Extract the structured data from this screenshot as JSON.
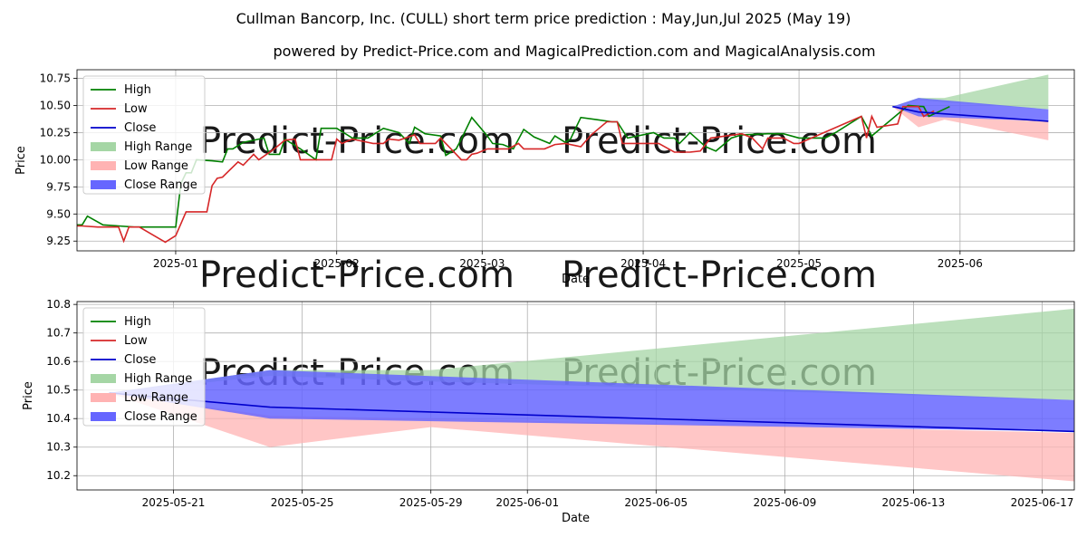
{
  "title": "Cullman Bancorp, Inc. (CULL) short term price prediction : May,Jun,Jul 2025 (May 19)",
  "subtitle": "powered by Predict-Price.com and MagicalPrediction.com and MagicalAnalysis.com",
  "watermark": "Predict-Price.com",
  "colors": {
    "high": "#008000",
    "low": "#d62728",
    "close": "#0000cc",
    "high_range": "#a5d6a5",
    "low_range": "#ffb3b3",
    "close_range": "#6666ff"
  },
  "chart_data": [
    {
      "type": "line",
      "xlabel": "Date",
      "ylabel": "Price",
      "x_axis": "date",
      "xlim": [
        "2024-12-13",
        "2025-06-23"
      ],
      "ylim": [
        9.16,
        10.83
      ],
      "x_ticks": [
        "2025-01-01",
        "2025-02-01",
        "2025-03-01",
        "2025-04-01",
        "2025-05-01",
        "2025-06-01"
      ],
      "x_tick_labels": [
        "2025-01",
        "2025-02",
        "2025-03",
        "2025-04",
        "2025-05",
        "2025-06"
      ],
      "y_ticks": [
        9.25,
        9.5,
        9.75,
        10.0,
        10.25,
        10.5,
        10.75
      ],
      "y_tick_labels": [
        "9.25",
        "9.50",
        "9.75",
        "10.00",
        "10.25",
        "10.50",
        "10.75"
      ],
      "grid": true,
      "legend_position": "top-left",
      "legend": [
        "High",
        "Low",
        "Close",
        "High Range",
        "Low Range",
        "Close Range"
      ],
      "series": [
        {
          "name": "High",
          "key": "high",
          "points": [
            [
              "2024-12-20",
              9.39
            ],
            [
              "2024-12-21",
              9.58
            ],
            [
              "2024-12-24",
              9.49
            ],
            [
              "2024-12-27",
              9.5
            ],
            [
              "2024-12-30",
              9.52
            ],
            [
              "2025-01-01",
              9.51
            ],
            [
              "2025-01-03",
              9.46
            ],
            [
              "2025-01-06",
              9.44
            ],
            [
              "2025-01-08",
              9.4
            ],
            [
              "2025-01-10",
              9.4
            ],
            [
              "2025-01-11",
              9.48
            ],
            [
              "2025-01-14",
              9.4
            ],
            [
              "2025-01-17",
              9.39
            ],
            [
              "2025-01-20",
              9.38
            ],
            [
              "2025-01-28",
              9.38
            ],
            [
              "2025-01-29",
              9.78
            ],
            [
              "2025-01-30",
              9.88
            ],
            [
              "2025-01-31",
              9.88
            ],
            [
              "2025-02-01",
              10.0
            ],
            [
              "2025-02-04",
              9.99
            ],
            [
              "2025-02-06",
              9.98
            ],
            [
              "2025-02-07",
              10.1
            ],
            [
              "2025-02-08",
              10.1
            ],
            [
              "2025-02-10",
              10.16
            ],
            [
              "2025-02-13",
              10.19
            ],
            [
              "2025-02-14",
              10.2
            ],
            [
              "2025-02-15",
              10.05
            ],
            [
              "2025-02-17",
              10.05
            ],
            [
              "2025-02-18",
              10.19
            ],
            [
              "2025-02-21",
              10.1
            ],
            [
              "2025-02-24",
              10.0
            ],
            [
              "2025-02-25",
              10.29
            ],
            [
              "2025-02-28",
              10.29
            ],
            [
              "2025-03-03",
              10.2
            ],
            [
              "2025-03-06",
              10.2
            ],
            [
              "2025-03-09",
              10.29
            ],
            [
              "2025-03-12",
              10.25
            ],
            [
              "2025-03-14",
              10.15
            ],
            [
              "2025-03-15",
              10.3
            ],
            [
              "2025-03-17",
              10.24
            ],
            [
              "2025-03-20",
              10.22
            ],
            [
              "2025-03-21",
              10.04
            ],
            [
              "2025-03-23",
              10.1
            ],
            [
              "2025-03-24",
              10.19
            ],
            [
              "2025-03-26",
              10.39
            ],
            [
              "2025-03-29",
              10.22
            ],
            [
              "2025-03-30",
              10.15
            ],
            [
              "2025-04-01",
              10.14
            ],
            [
              "2025-04-03",
              10.1
            ],
            [
              "2025-04-05",
              10.28
            ],
            [
              "2025-04-07",
              10.21
            ],
            [
              "2025-04-10",
              10.15
            ],
            [
              "2025-04-11",
              10.22
            ],
            [
              "2025-04-13",
              10.16
            ],
            [
              "2025-04-14",
              10.19
            ],
            [
              "2025-04-16",
              10.39
            ],
            [
              "2025-04-19",
              10.37
            ],
            [
              "2025-04-22",
              10.35
            ],
            [
              "2025-04-23",
              10.35
            ],
            [
              "2025-04-25",
              10.2
            ],
            [
              "2025-04-30",
              10.25
            ],
            [
              "2025-05-02",
              10.2
            ],
            [
              "2025-05-04",
              10.2
            ],
            [
              "2025-05-05",
              10.15
            ],
            [
              "2025-05-07",
              10.25
            ],
            [
              "2025-05-10",
              10.12
            ],
            [
              "2025-05-12",
              10.08
            ],
            [
              "2025-05-15",
              10.2
            ],
            [
              "2025-05-17",
              10.23
            ],
            [
              "2025-05-22",
              10.24
            ],
            [
              "2025-05-25",
              10.24
            ],
            [
              "2025-05-28",
              10.2
            ],
            [
              "2025-05-31",
              10.2
            ],
            [
              "2025-06-02",
              10.2
            ],
            [
              "2025-06-04",
              10.25
            ],
            [
              "2025-06-09",
              10.4
            ],
            [
              "2025-06-11",
              10.22
            ],
            [
              "2025-06-13",
              10.3
            ],
            [
              "2025-06-18",
              10.5
            ],
            [
              "2025-06-21",
              10.49
            ],
            [
              "2025-06-22",
              10.4
            ],
            [
              "2025-06-26",
              10.49
            ]
          ]
        },
        {
          "name": "Low",
          "key": "low",
          "points": [
            [
              "2024-12-20",
              9.39
            ],
            [
              "2024-12-21",
              9.39
            ],
            [
              "2024-12-24",
              9.45
            ],
            [
              "2024-12-25",
              9.48
            ],
            [
              "2024-12-27",
              9.5
            ],
            [
              "2024-12-30",
              9.52
            ],
            [
              "2024-12-31",
              9.46
            ],
            [
              "2025-01-03",
              9.46
            ],
            [
              "2025-01-06",
              9.42
            ],
            [
              "2025-01-08",
              9.39
            ],
            [
              "2025-01-10",
              9.39
            ],
            [
              "2025-01-13",
              9.38
            ],
            [
              "2025-01-17",
              9.38
            ],
            [
              "2025-01-18",
              9.25
            ],
            [
              "2025-01-19",
              9.38
            ],
            [
              "2025-01-21",
              9.38
            ],
            [
              "2025-01-26",
              9.24
            ],
            [
              "2025-01-28",
              9.3
            ],
            [
              "2025-01-30",
              9.52
            ],
            [
              "2025-02-03",
              9.52
            ],
            [
              "2025-02-04",
              9.76
            ],
            [
              "2025-02-05",
              9.83
            ],
            [
              "2025-02-06",
              9.84
            ],
            [
              "2025-02-09",
              9.98
            ],
            [
              "2025-02-10",
              9.95
            ],
            [
              "2025-02-12",
              10.05
            ],
            [
              "2025-02-13",
              10.0
            ],
            [
              "2025-02-16",
              10.1
            ],
            [
              "2025-02-18",
              10.18
            ],
            [
              "2025-02-20",
              10.19
            ],
            [
              "2025-02-21",
              10.0
            ],
            [
              "2025-02-27",
              10.0
            ],
            [
              "2025-02-28",
              10.19
            ],
            [
              "2025-03-01",
              10.15
            ],
            [
              "2025-03-03",
              10.19
            ],
            [
              "2025-03-05",
              10.17
            ],
            [
              "2025-03-07",
              10.15
            ],
            [
              "2025-03-09",
              10.15
            ],
            [
              "2025-03-10",
              10.19
            ],
            [
              "2025-03-12",
              10.18
            ],
            [
              "2025-03-15",
              10.23
            ],
            [
              "2025-03-16",
              10.15
            ],
            [
              "2025-03-19",
              10.15
            ],
            [
              "2025-03-20",
              10.2
            ],
            [
              "2025-03-22",
              10.1
            ],
            [
              "2025-03-24",
              10.0
            ],
            [
              "2025-03-25",
              10.0
            ],
            [
              "2025-03-26",
              10.05
            ],
            [
              "2025-03-27",
              10.06
            ],
            [
              "2025-03-29",
              10.1
            ],
            [
              "2025-03-30",
              10.1
            ],
            [
              "2025-04-02",
              10.1
            ],
            [
              "2025-04-04",
              10.15
            ],
            [
              "2025-04-05",
              10.1
            ],
            [
              "2025-04-06",
              10.1
            ],
            [
              "2025-04-09",
              10.1
            ],
            [
              "2025-04-11",
              10.14
            ],
            [
              "2025-04-13",
              10.15
            ],
            [
              "2025-04-15",
              10.13
            ],
            [
              "2025-04-16",
              10.12
            ],
            [
              "2025-04-18",
              10.23
            ],
            [
              "2025-04-21",
              10.35
            ],
            [
              "2025-04-23",
              10.35
            ],
            [
              "2025-04-24",
              10.15
            ],
            [
              "2025-04-27",
              10.15
            ],
            [
              "2025-04-30",
              10.15
            ],
            [
              "2025-05-01",
              10.15
            ],
            [
              "2025-05-04",
              10.07
            ],
            [
              "2025-05-07",
              10.07
            ],
            [
              "2025-05-09",
              10.08
            ],
            [
              "2025-05-11",
              10.2
            ],
            [
              "2025-05-14",
              10.22
            ],
            [
              "2025-05-17",
              10.24
            ],
            [
              "2025-05-19",
              10.2
            ],
            [
              "2025-05-21",
              10.1
            ],
            [
              "2025-05-22",
              10.2
            ],
            [
              "2025-05-25",
              10.2
            ],
            [
              "2025-05-27",
              10.15
            ],
            [
              "2025-05-28",
              10.15
            ],
            [
              "2025-06-09",
              10.4
            ],
            [
              "2025-06-10",
              10.2
            ],
            [
              "2025-06-11",
              10.4
            ],
            [
              "2025-06-12",
              10.3
            ],
            [
              "2025-06-16",
              10.33
            ],
            [
              "2025-06-17",
              10.49
            ],
            [
              "2025-06-20",
              10.49
            ],
            [
              "2025-06-21",
              10.4
            ],
            [
              "2025-06-23",
              10.45
            ]
          ]
        },
        {
          "name": "Close",
          "key": "close",
          "points": [
            [
              "2025-06-23",
              10.49
            ],
            [
              "2025-06-23",
              10.49
            ]
          ]
        }
      ]
    },
    {
      "type": "line",
      "xlabel": "Date",
      "ylabel": "Price",
      "x_axis": "date",
      "xlim": [
        "2025-05-18",
        "2025-06-18"
      ],
      "ylim": [
        10.15,
        10.81
      ],
      "x_ticks": [
        "2025-05-21",
        "2025-05-25",
        "2025-05-29",
        "2025-06-01",
        "2025-06-05",
        "2025-06-09",
        "2025-06-13",
        "2025-06-17"
      ],
      "x_tick_labels": [
        "2025-05-21",
        "2025-05-25",
        "2025-05-29",
        "2025-06-01",
        "2025-06-05",
        "2025-06-09",
        "2025-06-13",
        "2025-06-17"
      ],
      "y_ticks": [
        10.2,
        10.3,
        10.4,
        10.5,
        10.6,
        10.7,
        10.8
      ],
      "y_tick_labels": [
        "10.2",
        "10.3",
        "10.4",
        "10.5",
        "10.6",
        "10.7",
        "10.8"
      ],
      "grid": true,
      "legend_position": "top-left",
      "legend": [
        "High",
        "Low",
        "Close",
        "High Range",
        "Low Range",
        "Close Range"
      ]
    }
  ],
  "forecast": {
    "high_range": {
      "upper": [
        [
          "2025-05-19",
          10.49
        ],
        [
          "2025-05-24",
          10.57
        ],
        [
          "2025-05-29",
          10.57
        ],
        [
          "2025-06-18",
          10.785
        ]
      ],
      "lower": [
        [
          "2025-05-19",
          10.49
        ],
        [
          "2025-05-24",
          10.55
        ],
        [
          "2025-05-29",
          10.53
        ],
        [
          "2025-06-18",
          10.465
        ]
      ]
    },
    "low_range": {
      "upper": [
        [
          "2025-05-19",
          10.49
        ],
        [
          "2025-05-24",
          10.41
        ],
        [
          "2025-05-29",
          10.4
        ],
        [
          "2025-06-18",
          10.35
        ]
      ],
      "lower": [
        [
          "2025-05-19",
          10.49
        ],
        [
          "2025-05-24",
          10.3
        ],
        [
          "2025-05-29",
          10.37
        ],
        [
          "2025-06-18",
          10.18
        ]
      ]
    },
    "close_range": {
      "upper": [
        [
          "2025-05-19",
          10.49
        ],
        [
          "2025-05-24",
          10.57
        ],
        [
          "2025-06-18",
          10.465
        ]
      ],
      "lower": [
        [
          "2025-05-19",
          10.49
        ],
        [
          "2025-05-24",
          10.4
        ],
        [
          "2025-06-18",
          10.355
        ]
      ]
    },
    "close": [
      [
        "2025-05-19",
        10.49
      ],
      [
        "2025-05-24",
        10.44
      ],
      [
        "2025-06-18",
        10.355
      ]
    ]
  }
}
